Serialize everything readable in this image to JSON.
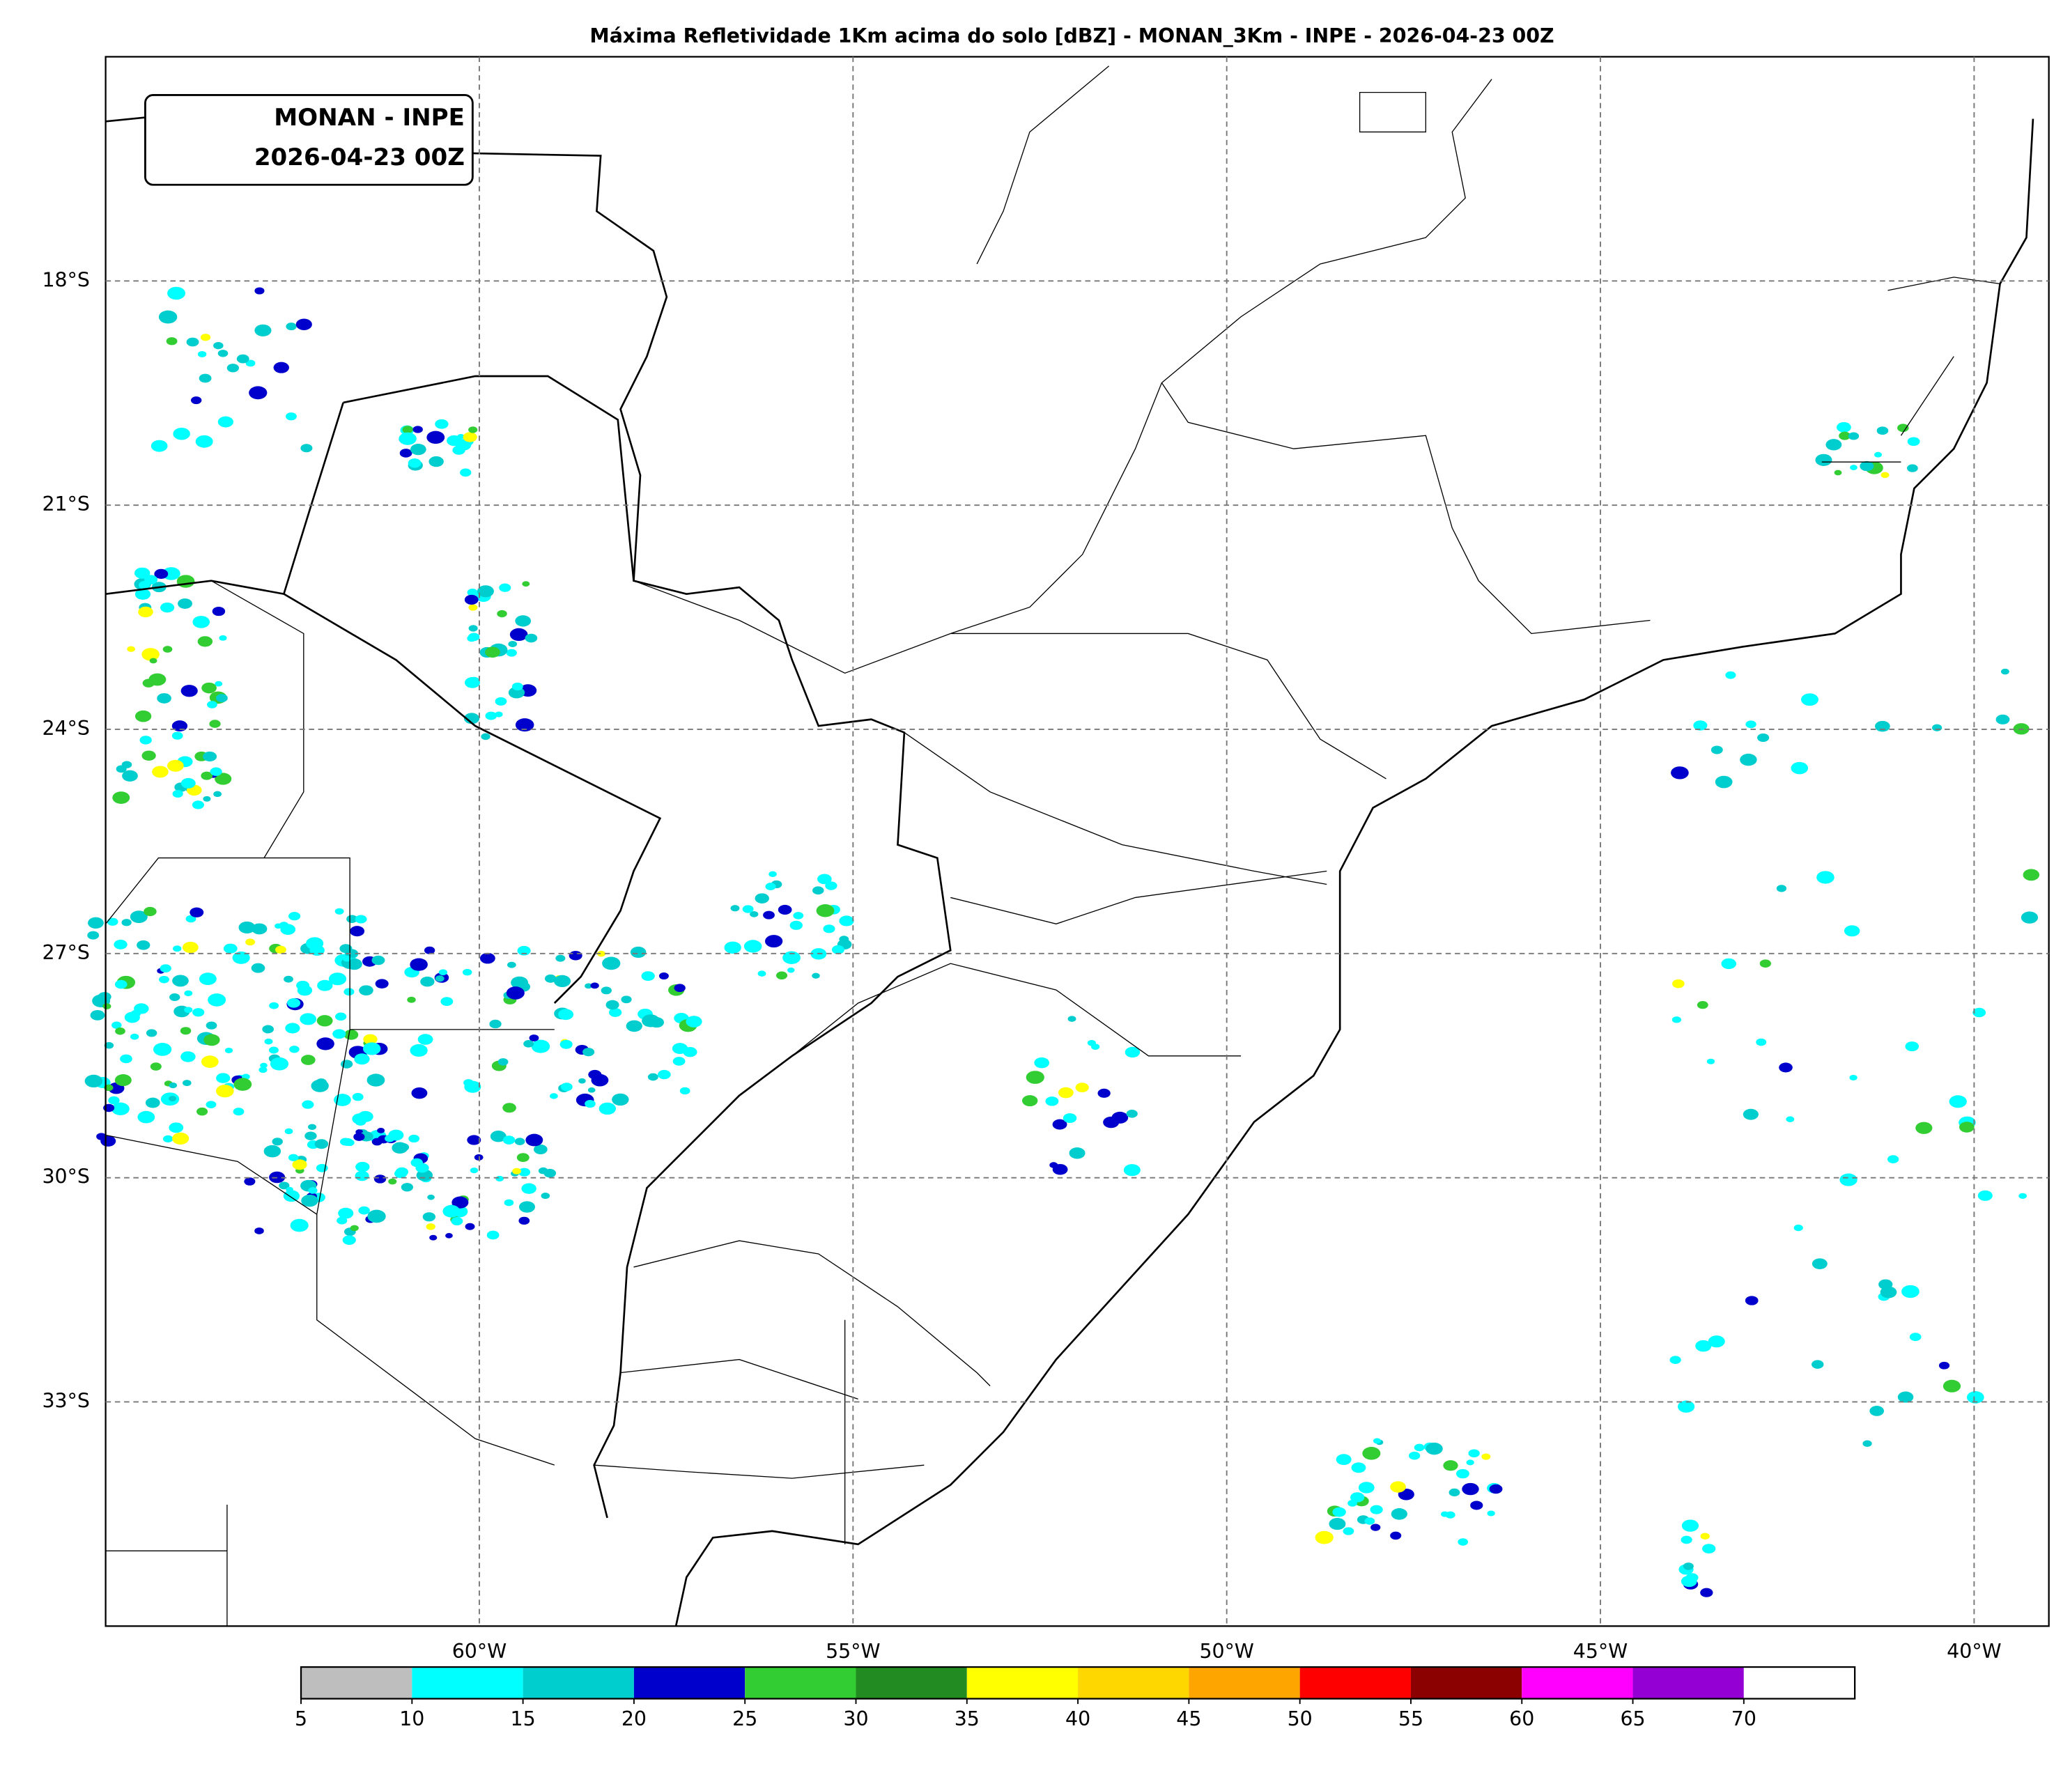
{
  "map": {
    "title": "Máxima Refletividade 1Km acima do solo [dBZ] - MONAN_3Km - INPE - 2026-04-23 00Z",
    "label_box": [
      "MONAN - INPE",
      "2026-04-23 00Z"
    ],
    "lonlim": [
      -65,
      -39
    ],
    "latlim": [
      -36,
      -15
    ],
    "lon_ticks": [
      {
        "value": -60,
        "label": "60°W"
      },
      {
        "value": -55,
        "label": "55°W"
      },
      {
        "value": -50,
        "label": "50°W"
      },
      {
        "value": -45,
        "label": "45°W"
      },
      {
        "value": -40,
        "label": "40°W"
      }
    ],
    "lat_ticks": [
      {
        "value": -18,
        "label": "18°S"
      },
      {
        "value": -21,
        "label": "21°S"
      },
      {
        "value": -24,
        "label": "24°S"
      },
      {
        "value": -27,
        "label": "27°S"
      },
      {
        "value": -30,
        "label": "30°S"
      },
      {
        "value": -33,
        "label": "33°S"
      }
    ],
    "grid": true,
    "colorbar": {
      "range": [
        5,
        75
      ],
      "levels": [
        5,
        10,
        15,
        20,
        25,
        30,
        35,
        40,
        45,
        50,
        55,
        60,
        65,
        70
      ],
      "colors": [
        "#bebebe",
        "#00ffff",
        "#00cdcd",
        "#0000cd",
        "#32cd32",
        "#228b22",
        "#ffff00",
        "#ffd700",
        "#ffa500",
        "#ff0000",
        "#8b0000",
        "#ff00ff",
        "#9400d3",
        "#ffffff"
      ]
    }
  }
}
